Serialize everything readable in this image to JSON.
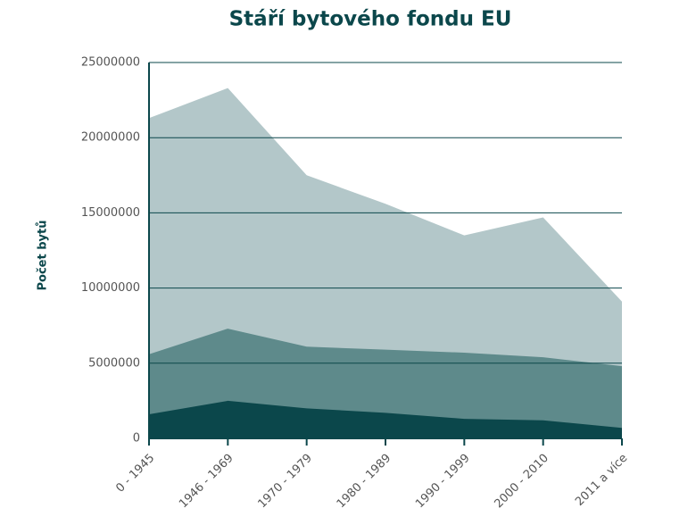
{
  "chart_data": {
    "type": "area",
    "title": "Stáří bytového fondu EU",
    "y_label": "Počet bytů",
    "categories": [
      "0 - 1945",
      "1946 - 1969",
      "1970 - 1979",
      "1980 - 1989",
      "1990 - 1999",
      "2000 - 2010",
      "2011 a více"
    ],
    "series": [
      {
        "color": "#b3c7c9",
        "values": [
          21300000,
          23300000,
          17500000,
          15600000,
          13500000,
          14700000,
          9100000
        ]
      },
      {
        "color": "#5e8a8b",
        "values": [
          5600000,
          7300000,
          6100000,
          5900000,
          5700000,
          5400000,
          4800000
        ]
      },
      {
        "color": "#0b474b",
        "values": [
          1600000,
          2500000,
          2000000,
          1700000,
          1300000,
          1200000,
          700000
        ]
      }
    ],
    "ylim": [
      0,
      25000000
    ],
    "yticks": [
      0,
      5000000,
      10000000,
      15000000,
      20000000,
      25000000
    ],
    "grid": true
  }
}
